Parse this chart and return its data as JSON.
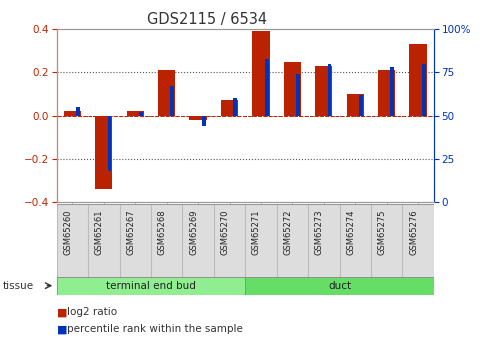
{
  "title": "GDS2115 / 6534",
  "samples": [
    "GSM65260",
    "GSM65261",
    "GSM65267",
    "GSM65268",
    "GSM65269",
    "GSM65270",
    "GSM65271",
    "GSM65272",
    "GSM65273",
    "GSM65274",
    "GSM65275",
    "GSM65276"
  ],
  "log2_ratio": [
    0.02,
    -0.34,
    0.02,
    0.21,
    -0.02,
    0.07,
    0.39,
    0.25,
    0.23,
    0.1,
    0.21,
    0.33
  ],
  "percentile_rank": [
    55,
    18,
    52,
    67,
    44,
    60,
    83,
    74,
    80,
    62,
    78,
    80
  ],
  "groups": [
    {
      "label": "terminal end bud",
      "start": 0,
      "end": 6,
      "color": "#90ee90"
    },
    {
      "label": "duct",
      "start": 6,
      "end": 12,
      "color": "#66dd66"
    }
  ],
  "ylim_left": [
    -0.4,
    0.4
  ],
  "ylim_right": [
    0,
    100
  ],
  "yticks_left": [
    -0.4,
    -0.2,
    0.0,
    0.2,
    0.4
  ],
  "yticks_right": [
    0,
    25,
    50,
    75,
    100
  ],
  "bar_color_red": "#bb2200",
  "bar_color_blue": "#0033bb",
  "tissue_label": "tissue",
  "legend_red": "log2 ratio",
  "legend_blue": "percentile rank within the sample",
  "bg_color": "#ffffff"
}
